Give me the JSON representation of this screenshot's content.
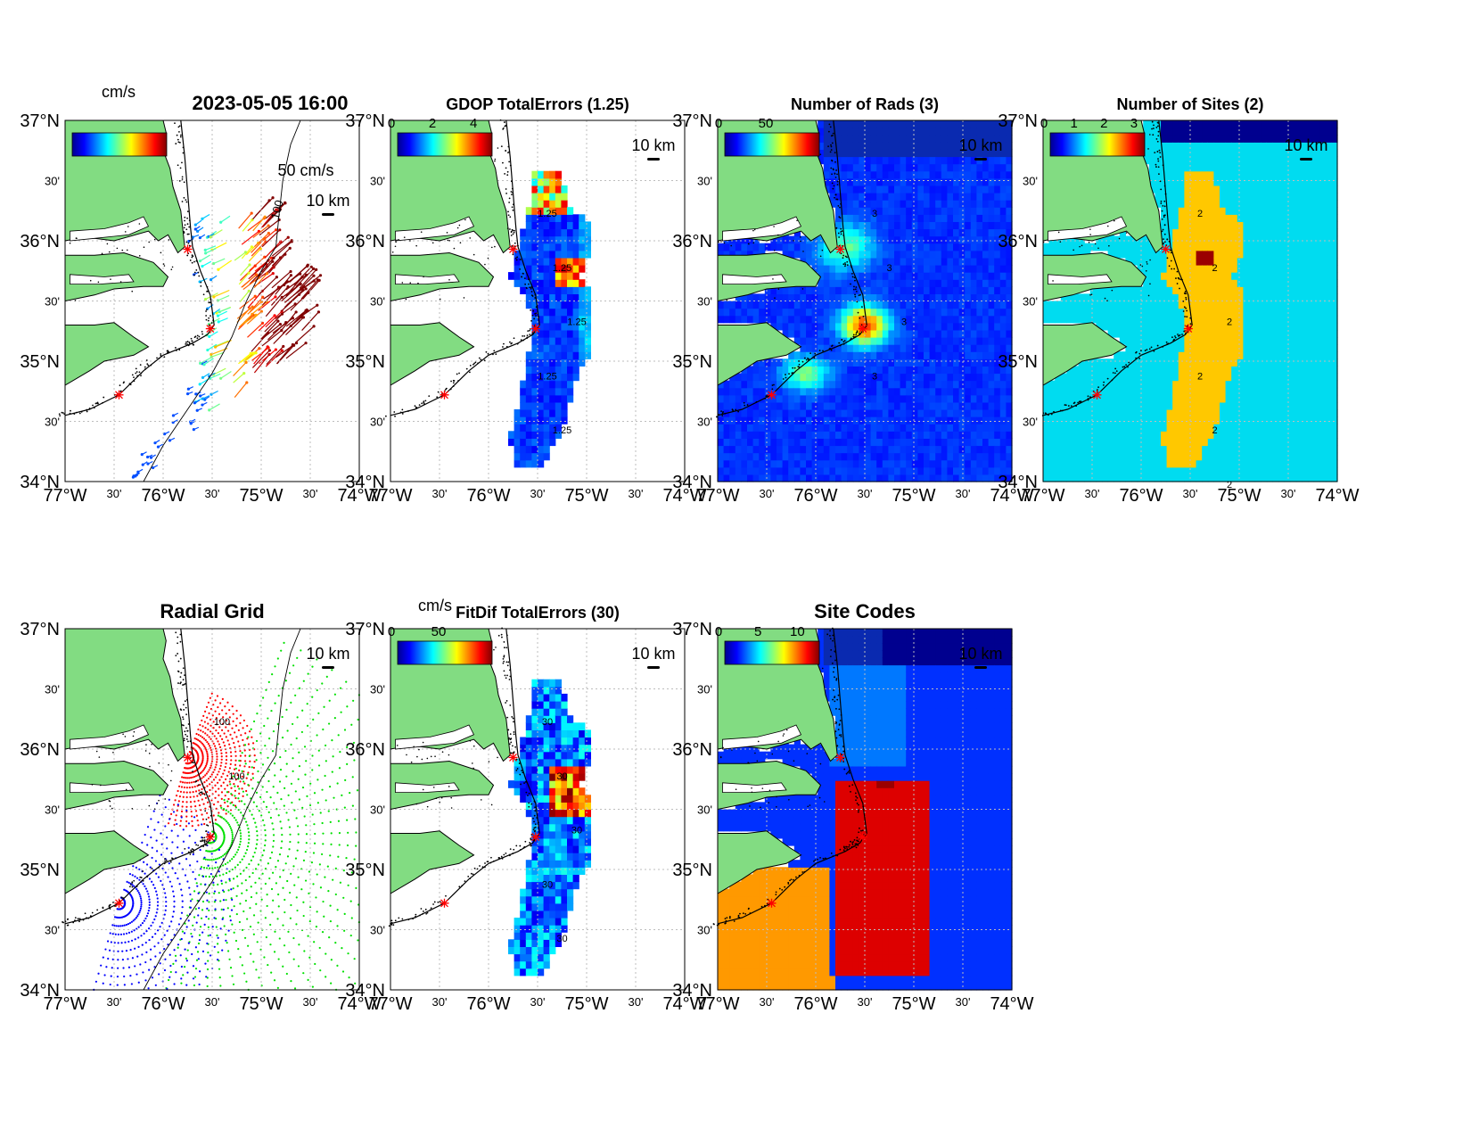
{
  "figure": {
    "datetime": "2023-05-05 16:00"
  },
  "map": {
    "lon_ticks": [
      "77°W",
      "30'",
      "76°W",
      "30'",
      "75°W",
      "30'",
      "74°W"
    ],
    "lat_ticks": [
      "37°N",
      "30'",
      "36°N",
      "30'",
      "35°N",
      "30'",
      "34°N"
    ],
    "scale_label": "10 km",
    "vector_scale_label": "50 cm/s",
    "units_label": "cm/s",
    "isobath_label": "100",
    "sites": [
      {
        "lon": -75.75,
        "lat": 35.93
      },
      {
        "lon": -75.52,
        "lat": 35.27
      },
      {
        "lon": -76.45,
        "lat": 34.72
      }
    ]
  },
  "chart_data": [
    {
      "type": "quiver",
      "title": "2023-05-05 16:00",
      "units": "cm/s",
      "colorbar_ticks": [],
      "xlim": [
        -77,
        -74
      ],
      "ylim": [
        34,
        37
      ],
      "scale": "50 cm/s",
      "contour_labels": [
        "100"
      ]
    },
    {
      "type": "heatmap",
      "title": "GDOP TotalErrors (1.25)",
      "colorbar_ticks": [
        "0",
        "2",
        "4"
      ],
      "contour_labels": [
        "1.25",
        "1.25",
        "1.25",
        "1.25",
        "1.25"
      ]
    },
    {
      "type": "heatmap",
      "title": "Number of Rads (3)",
      "colorbar_ticks": [
        "0",
        "50"
      ],
      "contour_labels": [
        "3",
        "3",
        "3",
        "3"
      ]
    },
    {
      "type": "heatmap",
      "title": "Number of Sites (2)",
      "colorbar_ticks": [
        "0",
        "1",
        "2",
        "3"
      ],
      "contour_labels": [
        "2",
        "2",
        "2",
        "2",
        "2",
        "2"
      ]
    },
    {
      "type": "scatter",
      "title": "Radial Grid",
      "series": [
        "site 1 radial grid",
        "site 2 radial grid",
        "site 3 radial grid"
      ],
      "contour_labels": [
        "100",
        "100"
      ]
    },
    {
      "type": "heatmap",
      "title": "FitDif TotalErrors (30)",
      "units": "cm/s",
      "colorbar_ticks": [
        "0",
        "50"
      ],
      "contour_labels": [
        "30",
        "30",
        "30",
        "30",
        "30"
      ]
    },
    {
      "type": "heatmap",
      "title": "Site Codes",
      "colorbar_ticks": [
        "0",
        "5",
        "10"
      ]
    }
  ]
}
